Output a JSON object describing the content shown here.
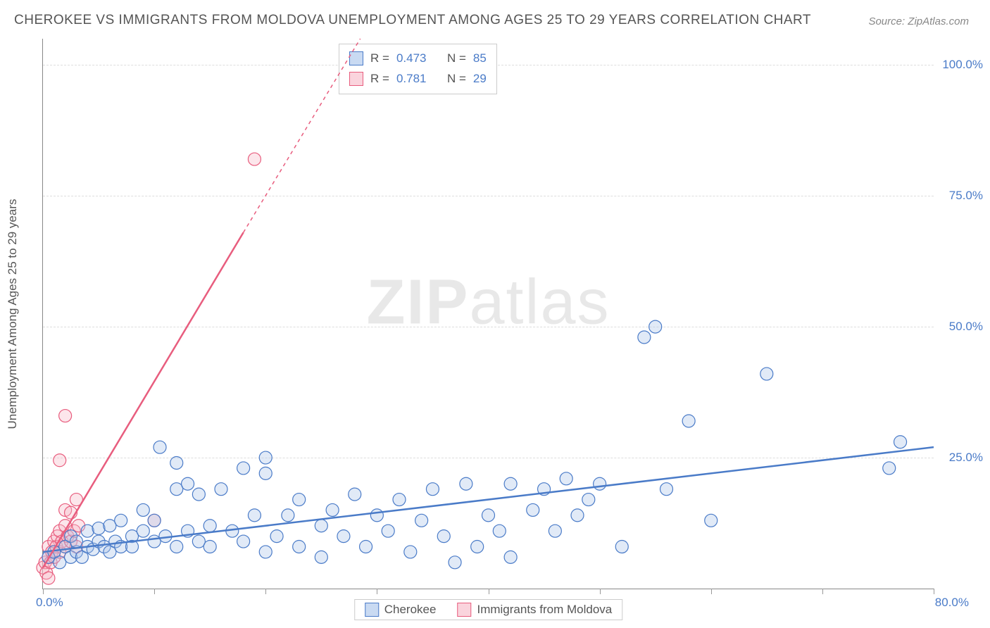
{
  "title": "CHEROKEE VS IMMIGRANTS FROM MOLDOVA UNEMPLOYMENT AMONG AGES 25 TO 29 YEARS CORRELATION CHART",
  "source": "Source: ZipAtlas.com",
  "y_axis_label": "Unemployment Among Ages 25 to 29 years",
  "watermark_bold": "ZIP",
  "watermark_light": "atlas",
  "chart": {
    "type": "scatter",
    "background_color": "#ffffff",
    "grid_color": "#dddddd",
    "axis_color": "#888888",
    "label_color_axis": "#4a7bc8",
    "label_fontsize": 17,
    "title_fontsize": 19,
    "title_color": "#555555",
    "xlim": [
      0,
      80
    ],
    "ylim": [
      0,
      105
    ],
    "y_gridlines": [
      25,
      50,
      75,
      100
    ],
    "y_tick_labels": [
      "25.0%",
      "50.0%",
      "75.0%",
      "100.0%"
    ],
    "x_tick_positions": [
      0,
      10,
      20,
      30,
      40,
      50,
      60,
      70,
      80
    ],
    "x_min_label": "0.0%",
    "x_max_label": "80.0%",
    "marker_radius": 9,
    "marker_stroke_width": 1.2,
    "marker_fill_opacity": 0.35,
    "trend_line_width": 2.5,
    "trend_dash_width": 1.5
  },
  "series": {
    "cherokee": {
      "label": "Cherokee",
      "color_stroke": "#4a7bc8",
      "color_fill": "#a9c4e8",
      "swatch_fill": "#c9daf2",
      "swatch_border": "#4a7bc8",
      "R": "0.473",
      "N": "85",
      "trend": {
        "x1": 0,
        "y1": 7,
        "x2": 80,
        "y2": 27
      },
      "points": [
        [
          0.5,
          6
        ],
        [
          1,
          7
        ],
        [
          1.5,
          5
        ],
        [
          2,
          8
        ],
        [
          2.5,
          6
        ],
        [
          2.5,
          10
        ],
        [
          3,
          7
        ],
        [
          3,
          9
        ],
        [
          3.5,
          6
        ],
        [
          4,
          8
        ],
        [
          4,
          11
        ],
        [
          4.5,
          7.5
        ],
        [
          5,
          9
        ],
        [
          5,
          11.5
        ],
        [
          5.5,
          8
        ],
        [
          6,
          7
        ],
        [
          6,
          12
        ],
        [
          6.5,
          9
        ],
        [
          7,
          8
        ],
        [
          7,
          13
        ],
        [
          8,
          10
        ],
        [
          8,
          8
        ],
        [
          9,
          11
        ],
        [
          9,
          15
        ],
        [
          10,
          9
        ],
        [
          10,
          13
        ],
        [
          10.5,
          27
        ],
        [
          11,
          10
        ],
        [
          12,
          19
        ],
        [
          12,
          8
        ],
        [
          13,
          11
        ],
        [
          13,
          20
        ],
        [
          14,
          9
        ],
        [
          14,
          18
        ],
        [
          15,
          12
        ],
        [
          15,
          8
        ],
        [
          16,
          19
        ],
        [
          17,
          11
        ],
        [
          18,
          9
        ],
        [
          18,
          23
        ],
        [
          19,
          14
        ],
        [
          20,
          7
        ],
        [
          20,
          25
        ],
        [
          21,
          10
        ],
        [
          22,
          14
        ],
        [
          23,
          8
        ],
        [
          23,
          17
        ],
        [
          25,
          12
        ],
        [
          25,
          6
        ],
        [
          26,
          15
        ],
        [
          27,
          10
        ],
        [
          28,
          18
        ],
        [
          29,
          8
        ],
        [
          30,
          14
        ],
        [
          31,
          11
        ],
        [
          32,
          17
        ],
        [
          33,
          7
        ],
        [
          34,
          13
        ],
        [
          35,
          19
        ],
        [
          36,
          10
        ],
        [
          37,
          5
        ],
        [
          38,
          20
        ],
        [
          39,
          8
        ],
        [
          40,
          14
        ],
        [
          41,
          11
        ],
        [
          42,
          20
        ],
        [
          42,
          6
        ],
        [
          44,
          15
        ],
        [
          45,
          19
        ],
        [
          46,
          11
        ],
        [
          47,
          21
        ],
        [
          48,
          14
        ],
        [
          49,
          17
        ],
        [
          50,
          20
        ],
        [
          52,
          8
        ],
        [
          54,
          48
        ],
        [
          55,
          50
        ],
        [
          56,
          19
        ],
        [
          58,
          32
        ],
        [
          60,
          13
        ],
        [
          65,
          41
        ],
        [
          76,
          23
        ],
        [
          77,
          28
        ],
        [
          20,
          22
        ],
        [
          12,
          24
        ]
      ]
    },
    "moldova": {
      "label": "Immigrants from Moldova",
      "color_stroke": "#e85d7e",
      "color_fill": "#f5b8c6",
      "swatch_fill": "#fad4dd",
      "swatch_border": "#e85d7e",
      "R": "0.781",
      "N": "29",
      "trend_solid": {
        "x1": 0,
        "y1": 4,
        "x2": 18,
        "y2": 68
      },
      "trend_dashed": {
        "x1": 18,
        "y1": 68,
        "x2": 28.5,
        "y2": 105
      },
      "points": [
        [
          0,
          4
        ],
        [
          0.2,
          5
        ],
        [
          0.3,
          3
        ],
        [
          0.5,
          6
        ],
        [
          0.5,
          8
        ],
        [
          0.7,
          5
        ],
        [
          0.8,
          7
        ],
        [
          1,
          6
        ],
        [
          1,
          9
        ],
        [
          1.2,
          8
        ],
        [
          1.3,
          10
        ],
        [
          1.5,
          7
        ],
        [
          1.5,
          11
        ],
        [
          1.5,
          24.5
        ],
        [
          1.7,
          9
        ],
        [
          2,
          8
        ],
        [
          2,
          12
        ],
        [
          2,
          15
        ],
        [
          2.2,
          10
        ],
        [
          2.5,
          9
        ],
        [
          2.5,
          14.5
        ],
        [
          2.8,
          11
        ],
        [
          3,
          8
        ],
        [
          3,
          17
        ],
        [
          3.2,
          12
        ],
        [
          2,
          33
        ],
        [
          0.5,
          2
        ],
        [
          10,
          13
        ],
        [
          19,
          82
        ]
      ]
    }
  },
  "stats_box": {
    "r_label": "R =",
    "n_label": "N ="
  }
}
